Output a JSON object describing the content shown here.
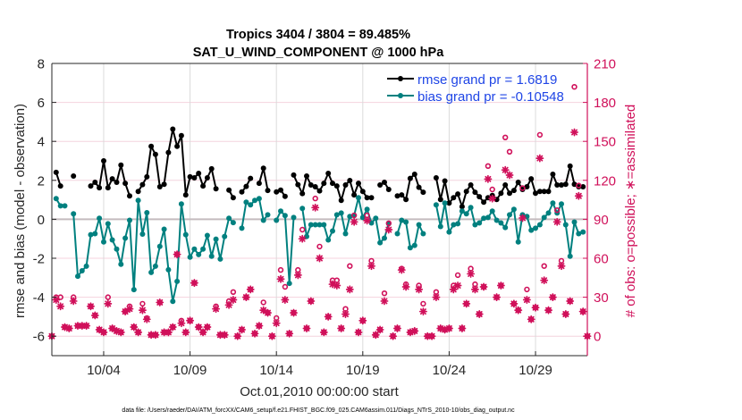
{
  "figure": {
    "footer": "data file: /Users/raeder/DAI/ATM_forcXX/CAM6_setup/f.e21.FHIST_BGC.f09_025.CAM6assim.011/Diags_NTrS_2010-10/obs_diag_output.nc"
  },
  "chart_data": {
    "type": "line",
    "title": [
      "Tropics 3404 / 3804 = 89.485%",
      "SAT_U_WIND_COMPONENT @ 1000 hPa"
    ],
    "xlabel": "Oct.01,2010 00:00:00 start",
    "ylabel": "rmse and bias (model - observation)",
    "y2label": "# of obs: o=possible; ∗=assimilated",
    "x_units": "days since Oct.01,2010 00:00:00",
    "xlim": [
      0,
      31
    ],
    "ylim": [
      -7,
      8
    ],
    "y2lim": [
      -15,
      210
    ],
    "xticks": [
      {
        "value": 3,
        "label": "10/04"
      },
      {
        "value": 8,
        "label": "10/09"
      },
      {
        "value": 13,
        "label": "10/14"
      },
      {
        "value": 18,
        "label": "10/19"
      },
      {
        "value": 23,
        "label": "10/24"
      },
      {
        "value": 28,
        "label": "10/29"
      }
    ],
    "yticks": [
      -6,
      -4,
      -2,
      0,
      2,
      4,
      6,
      8
    ],
    "y2ticks": [
      0,
      30,
      60,
      90,
      120,
      150,
      180,
      210
    ],
    "grid": true,
    "zero_line": 0,
    "legend": {
      "position": "top-right",
      "entries": [
        {
          "series": "rmse",
          "label": "rmse grand pr = 1.6819"
        },
        {
          "series": "bias",
          "label": "bias grand pr = -0.10548"
        }
      ]
    },
    "colors": {
      "rmse": "#000000",
      "bias": "#00807f",
      "obs": "#d0105a",
      "legend_text": "#1f45e6",
      "grid_y": "#f4d3de",
      "grid_x": "#dadada",
      "zero_line": "#c4bbbe"
    },
    "x_start": 0,
    "x_step": 0.25,
    "series": [
      {
        "name": "rmse",
        "axis": "left",
        "style": "line-dot",
        "values": [
          null,
          2.41,
          1.71,
          null,
          null,
          2.22,
          null,
          null,
          null,
          1.71,
          1.9,
          1.62,
          3.0,
          1.62,
          2.08,
          1.9,
          2.78,
          1.85,
          1.2,
          null,
          1.43,
          1.78,
          2.18,
          3.75,
          3.33,
          1.67,
          1.8,
          3.43,
          4.63,
          3.75,
          4.3,
          1.25,
          2.18,
          2.13,
          2.36,
          1.71,
          2.13,
          2.59,
          1.57,
          null,
          null,
          1.5,
          1.11,
          null,
          1.41,
          1.69,
          2.1,
          null,
          1.85,
          2.62,
          1.48,
          null,
          1.41,
          1.5,
          1.18,
          null,
          2.27,
          1.78,
          1.32,
          2.22,
          1.76,
          1.67,
          1.46,
          1.85,
          2.36,
          1.85,
          1.71,
          0.97,
          1.76,
          1.99,
          1.25,
          1.85,
          1.43,
          1.11,
          1.11,
          null,
          1.76,
          1.9,
          1.53,
          null,
          1.2,
          1.25,
          1.02,
          2.1,
          2.31,
          1.64,
          1.39,
          null,
          null,
          2.13,
          1.02,
          1.97,
          0.83,
          1.11,
          1.3,
          0.65,
          1.43,
          1.76,
          1.39,
          1.16,
          0.88,
          1.11,
          1.22,
          1.02,
          1.34,
          1.76,
          1.34,
          1.48,
          1.9,
          1.53,
          1.67,
          2.08,
          1.34,
          1.43,
          1.43,
          1.43,
          2.31,
          1.76,
          1.76,
          1.8,
          2.73,
          1.8,
          1.67,
          1.67,
          null
        ]
      },
      {
        "name": "bias",
        "axis": "left",
        "style": "line-dot",
        "values": [
          null,
          1.06,
          0.69,
          0.69,
          null,
          0.28,
          -2.92,
          -2.64,
          -2.41,
          -0.79,
          -0.74,
          0.05,
          -1.16,
          -0.23,
          -1.06,
          -1.53,
          -2.31,
          -0.97,
          -0.05,
          -3.61,
          0.97,
          -0.76,
          0.34,
          -2.73,
          -2.41,
          -1.39,
          -0.51,
          -2.59,
          -4.21,
          -3.19,
          0.79,
          -0.79,
          -1.94,
          -1.53,
          -1.81,
          -1.53,
          -0.83,
          -1.9,
          -1.02,
          -2.04,
          -0.88,
          0.05,
          -0.17,
          null,
          -0.46,
          0.88,
          0.74,
          0.97,
          1.06,
          -0.05,
          0.23,
          null,
          -0.05,
          0.42,
          0.19,
          -3.29,
          0.09,
          null,
          0.56,
          -0.88,
          -0.28,
          -0.28,
          -0.28,
          -0.28,
          -1.06,
          -0.6,
          0.23,
          0.32,
          -0.74,
          0.14,
          0.19,
          1.11,
          0.09,
          0.51,
          -0.19,
          0.05,
          -1.2,
          -0.97,
          -0.23,
          null,
          -0.74,
          -0.05,
          -0.14,
          -1.46,
          -1.34,
          -0.28,
          -0.74,
          null,
          null,
          0.74,
          -0.37,
          0.83,
          -0.65,
          -0.28,
          -0.23,
          0.42,
          0.28,
          0.6,
          -0.28,
          -0.19,
          0.05,
          0.09,
          0.42,
          -0.05,
          -0.19,
          -0.42,
          0.23,
          0.51,
          -1.16,
          0.23,
          0.14,
          -0.56,
          -0.46,
          -0.28,
          0.09,
          0.32,
          0.83,
          0.32,
          0.79,
          -0.28,
          -1.9,
          -0.14,
          -0.74,
          -0.65,
          null
        ]
      },
      {
        "name": "obs possible",
        "axis": "right",
        "style": "circle",
        "values": [
          0,
          30,
          30,
          7,
          6,
          30,
          8,
          8,
          8,
          23,
          16,
          5,
          3,
          30,
          6,
          4,
          3,
          19,
          23,
          7,
          3,
          25,
          14,
          1,
          1,
          26,
          3,
          3,
          7,
          63,
          12,
          3,
          12,
          41,
          7,
          3,
          7,
          null,
          23,
          1,
          1,
          27,
          34,
          0,
          5,
          30,
          36,
          2,
          8,
          26,
          18,
          0,
          14,
          51,
          38,
          2,
          18,
          51,
          82,
          6,
          27,
          106,
          69,
          3,
          15,
          43,
          43,
          6,
          21,
          54,
          93,
          3,
          12,
          93,
          58,
          1,
          5,
          33,
          87,
          0,
          6,
          52,
          40,
          3,
          4,
          39,
          25,
          0,
          0,
          34,
          6,
          5,
          6,
          39,
          47,
          6,
          25,
          52,
          40,
          17,
          38,
          131,
          113,
          30,
          39,
          153,
          142,
          25,
          20,
          114,
          36,
          13,
          22,
          155,
          54,
          20,
          30,
          97,
          58,
          17,
          27,
          192,
          116,
          19,
          0
        ]
      },
      {
        "name": "obs assimilated",
        "axis": "right",
        "style": "asterisk",
        "values": [
          0,
          28,
          23,
          7,
          6,
          27,
          8,
          8,
          8,
          23,
          16,
          5,
          3,
          25,
          6,
          4,
          3,
          19,
          21,
          7,
          3,
          20,
          13,
          1,
          1,
          26,
          3,
          3,
          7,
          63,
          10,
          3,
          12,
          41,
          7,
          3,
          7,
          null,
          21,
          1,
          1,
          24,
          28,
          0,
          5,
          30,
          36,
          2,
          8,
          20,
          18,
          0,
          10,
          44,
          28,
          2,
          18,
          47,
          75,
          6,
          27,
          99,
          60,
          3,
          15,
          40,
          39,
          6,
          17,
          36,
          88,
          3,
          12,
          89,
          54,
          1,
          5,
          27,
          82,
          0,
          6,
          51,
          38,
          3,
          4,
          36,
          19,
          0,
          0,
          30,
          6,
          5,
          6,
          36,
          39,
          6,
          25,
          48,
          36,
          17,
          38,
          121,
          106,
          30,
          39,
          128,
          124,
          25,
          20,
          91,
          28,
          13,
          22,
          137,
          43,
          20,
          30,
          88,
          54,
          17,
          27,
          157,
          108,
          19,
          0
        ]
      }
    ]
  }
}
